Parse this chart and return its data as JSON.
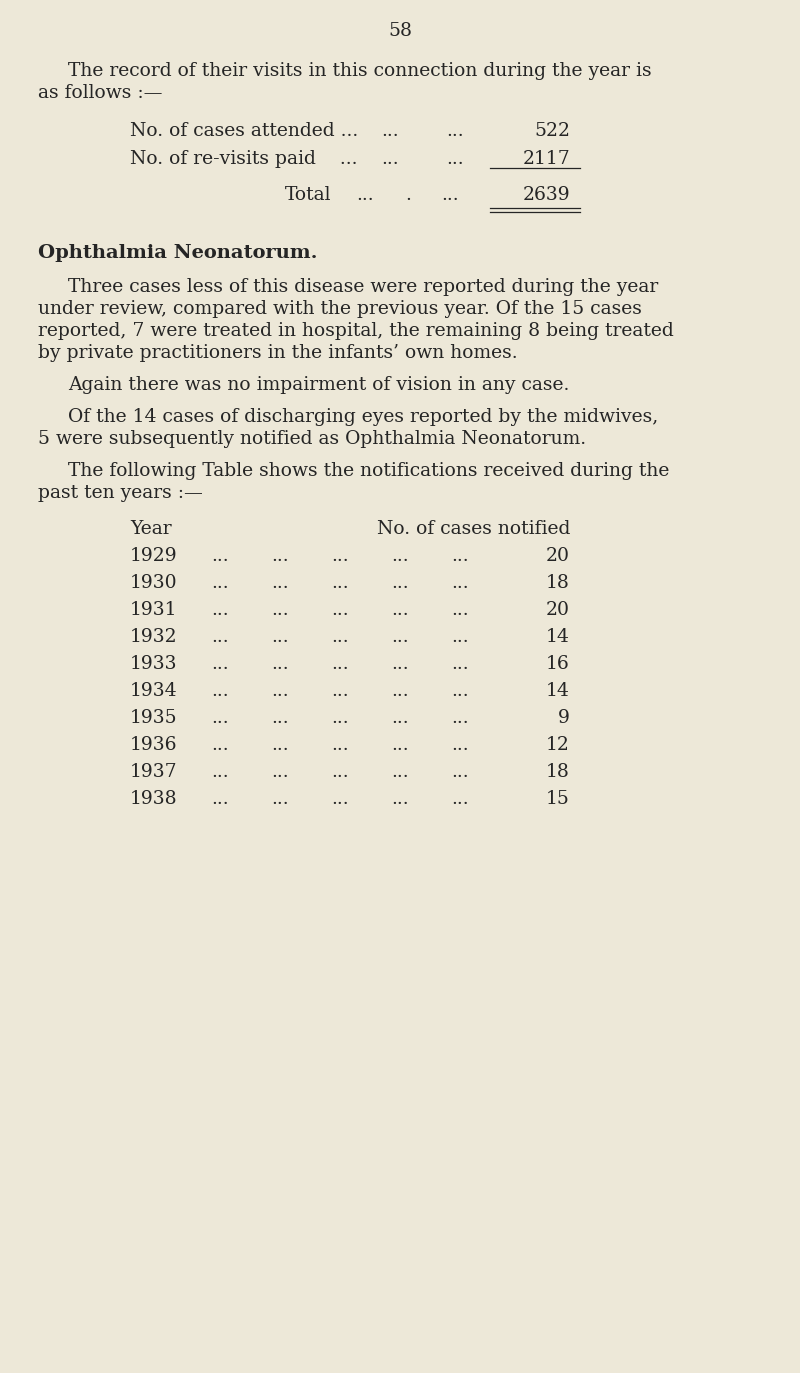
{
  "bg_color": "#ede8d8",
  "text_color": "#252525",
  "page_number": "58",
  "intro_line1": "The record of their visits in this connection during the year is",
  "intro_line2": "as follows :—",
  "row1_label": "No. of cases attended ...",
  "row1_value": "522",
  "row2_label": "No. of re-visits paid    ...",
  "row2_value": "2117",
  "total_label": "Total",
  "total_value": "2639",
  "section_heading": "Ophthalmia Neonatorum.",
  "para1_line1": "Three cases less of this disease were reported during the year",
  "para1_line2": "under review, compared with the previous year. Of the 15 cases",
  "para1_line3": "reported, 7 were treated in hospital, the remaining 8 being treated",
  "para1_line4": "by private practitioners in the infants’ own homes.",
  "para2": "Again there was no impairment of vision in any case.",
  "para3_line1": "Of the 14 cases of discharging eyes reported by the midwives,",
  "para3_line2": "5 were subsequently notified as Ophthalmia Neonatorum.",
  "para4_line1": "The following Table shows the notifications received during the",
  "para4_line2": "past ten years :—",
  "table_header_year": "Year",
  "table_header_cases": "No. of cases notified",
  "table_data": [
    [
      "1929",
      "20"
    ],
    [
      "1930",
      "18"
    ],
    [
      "1931",
      "20"
    ],
    [
      "1932",
      "14"
    ],
    [
      "1933",
      "16"
    ],
    [
      "1934",
      "14"
    ],
    [
      "1935",
      "9"
    ],
    [
      "1936",
      "12"
    ],
    [
      "1937",
      "18"
    ],
    [
      "1938",
      "15"
    ]
  ]
}
